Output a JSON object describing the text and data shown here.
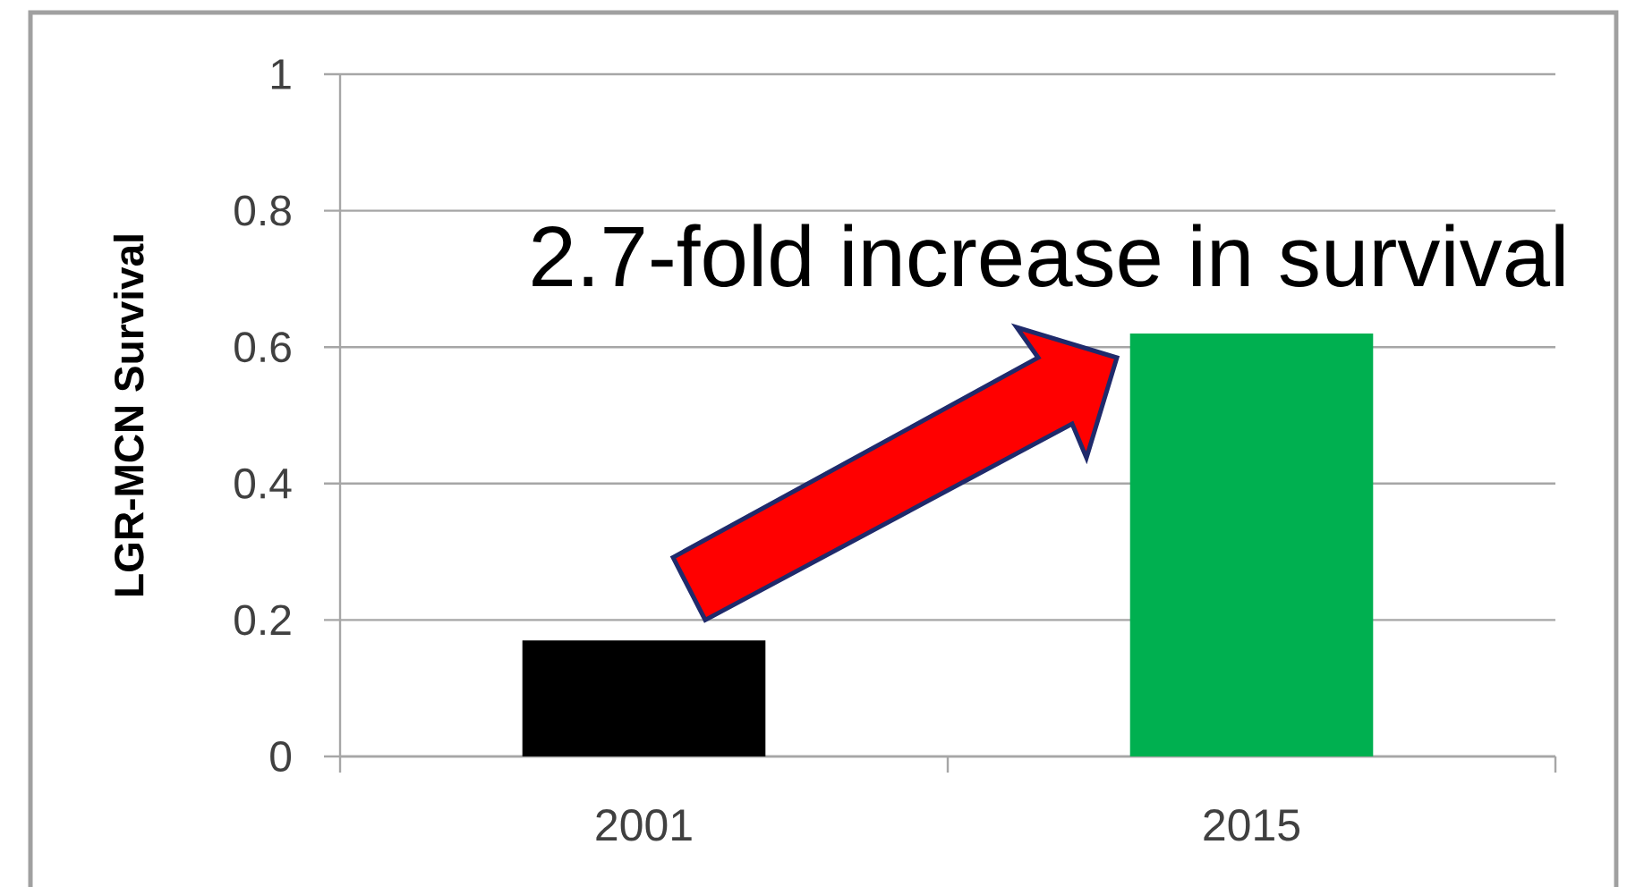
{
  "chart_data": {
    "type": "bar",
    "ylabel": "LGR-MCN Survival",
    "categories": [
      "2001",
      "2015"
    ],
    "values": [
      0.17,
      0.62
    ],
    "colors": [
      "#000000",
      "#00b050"
    ],
    "ylim": [
      0,
      1
    ],
    "yticks": [
      0,
      0.2,
      0.4,
      0.6,
      0.8,
      1
    ],
    "grid": "y",
    "annotations": [
      "2.7-fold increase in survival"
    ]
  }
}
